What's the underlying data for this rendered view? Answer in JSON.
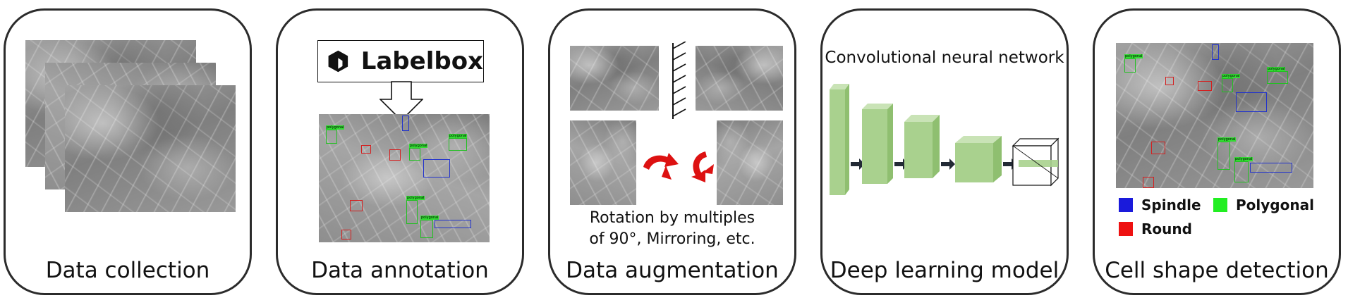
{
  "panels": {
    "collection": {
      "caption": "Data collection"
    },
    "annotation": {
      "caption": "Data annotation",
      "logo_text": "Labelbox",
      "box_label": "polygonal"
    },
    "augmentation": {
      "caption": "Data augmentation",
      "note_line1": "Rotation by multiples",
      "note_line2": "of 90°, Mirroring, etc."
    },
    "model": {
      "caption": "Deep learning model",
      "title": "Convolutional neural network"
    },
    "detection": {
      "caption": "Cell shape detection",
      "box_label": "polygonal",
      "legend": [
        {
          "label": "Spindle",
          "color": "#1a1adb"
        },
        {
          "label": "Polygonal",
          "color": "#22ee22"
        },
        {
          "label": "Round",
          "color": "#ee1111"
        }
      ]
    }
  },
  "colors": {
    "green_block": "#a9d18e",
    "arrow_red": "#dd1111",
    "border": "#2b2b2b"
  }
}
